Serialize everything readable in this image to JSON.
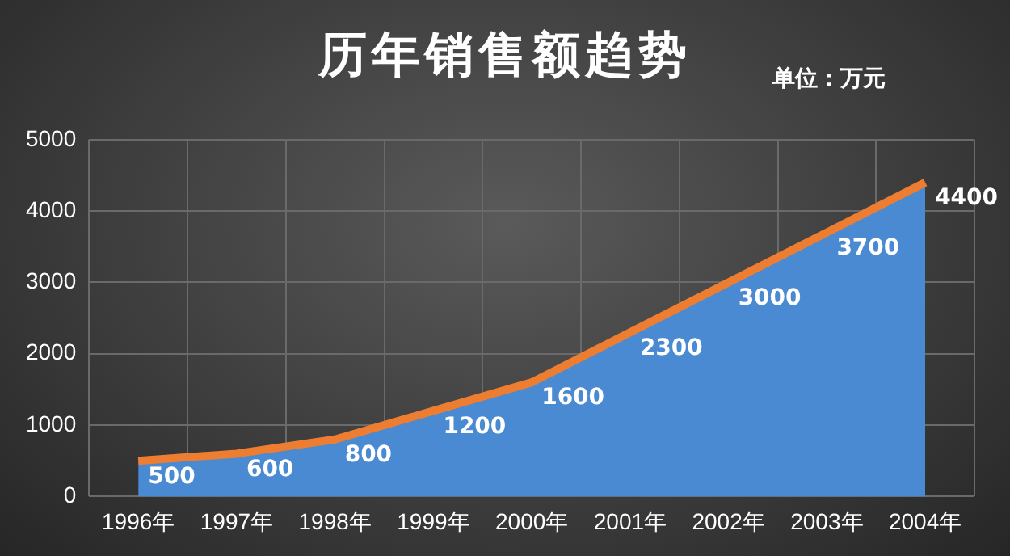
{
  "chart_data": {
    "type": "area",
    "title": "历年销售额趋势",
    "annotations": [
      "单位：万元"
    ],
    "categories": [
      "1996年",
      "1997年",
      "1998年",
      "1999年",
      "2000年",
      "2001年",
      "2002年",
      "2003年",
      "2004年"
    ],
    "series": [
      {
        "type": "area",
        "color": "#4a8ad2",
        "values": [
          500,
          600,
          800,
          1200,
          1600,
          2300,
          3000,
          3700,
          4400
        ],
        "value_labels": [
          "500",
          "600",
          "800",
          "1200",
          "1600",
          "2300",
          "3000",
          "3700",
          "4400"
        ]
      },
      {
        "type": "line",
        "color": "#ed7d31",
        "values": [
          500,
          600,
          800,
          1200,
          1600,
          2300,
          3000,
          3700,
          4400
        ]
      }
    ],
    "ylim": [
      0,
      5000
    ],
    "yticks": [
      0,
      1000,
      2000,
      3000,
      4000,
      5000
    ],
    "grid": true,
    "legend": false,
    "marker": "none",
    "line_style": "solid"
  }
}
